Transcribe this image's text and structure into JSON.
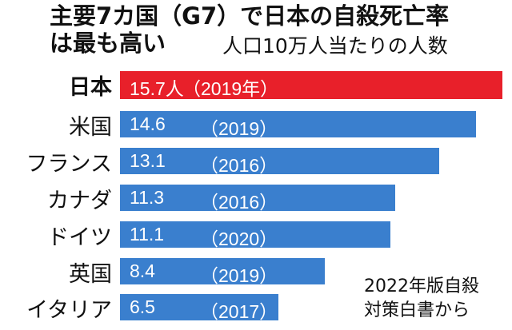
{
  "chart_data": {
    "type": "bar",
    "orientation": "horizontal",
    "title_line1": "主要7カ国（G7）で日本の自殺死亡率",
    "title_line2": "は最も高い",
    "subtitle": "人口10万人当たりの人数",
    "source_line1": "2022年版自殺",
    "source_line2": "対策白書から",
    "categories": [
      "日本",
      "米国",
      "フランス",
      "カナダ",
      "ドイツ",
      "英国",
      "イタリア"
    ],
    "values": [
      15.7,
      14.6,
      13.1,
      11.3,
      11.1,
      8.4,
      6.5
    ],
    "value_labels": [
      "15.7人",
      "14.6",
      "13.1",
      "11.3",
      "11.1",
      "8.4",
      "6.5"
    ],
    "year_labels": [
      "（2019年）",
      "（2019）",
      "（2016）",
      "（2016）",
      "（2020）",
      "（2019）",
      "（2017）"
    ],
    "colors": [
      "#e8202a",
      "#3a7fce",
      "#3a7fce",
      "#3a7fce",
      "#3a7fce",
      "#3a7fce",
      "#3a7fce"
    ],
    "xlim": [
      0,
      16
    ]
  }
}
